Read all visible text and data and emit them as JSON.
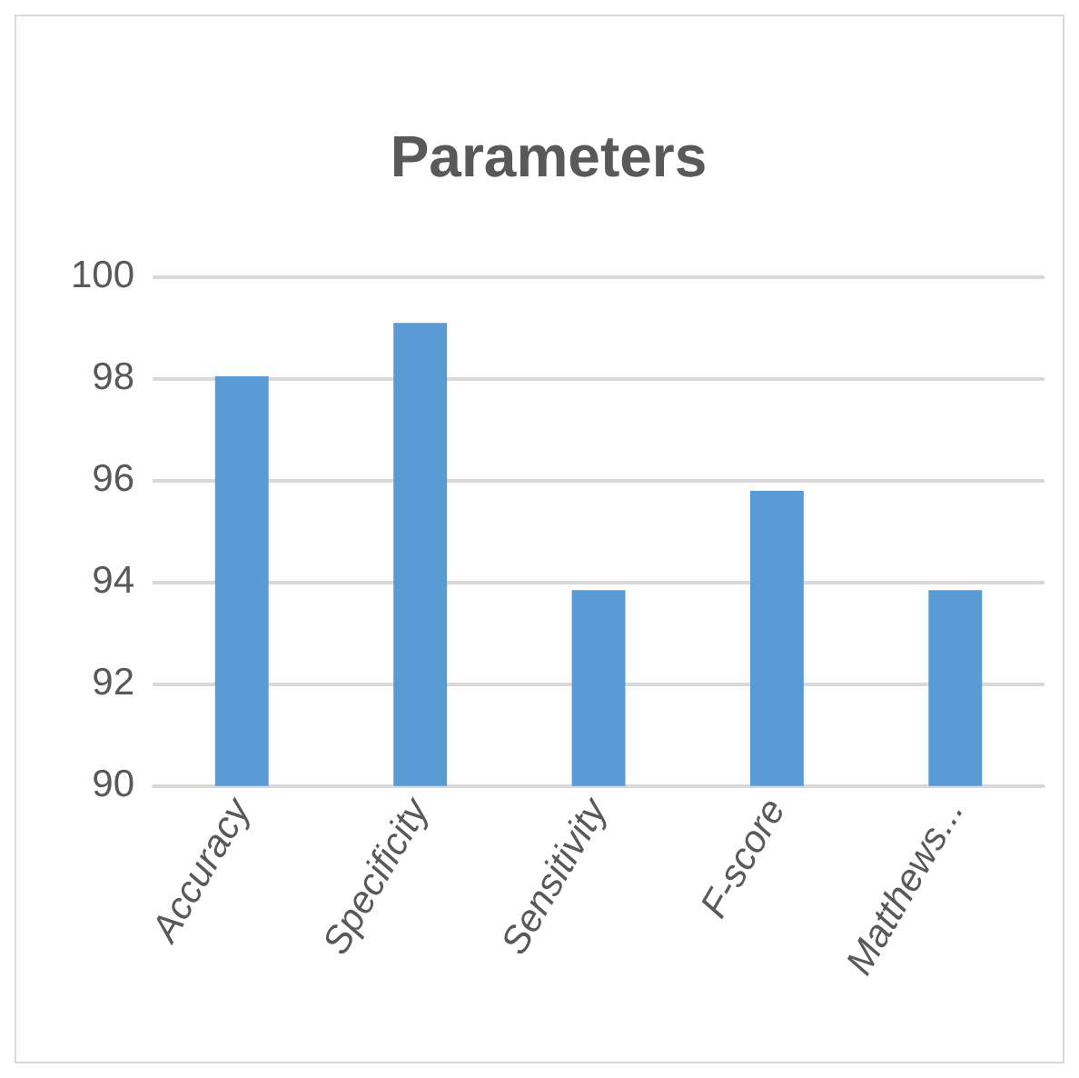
{
  "chart_data": {
    "type": "bar",
    "title": "Parameters",
    "categories": [
      "Accuracy",
      "Specificity",
      "Sensitivity",
      "F-score",
      "Matthews..."
    ],
    "values": [
      98.05,
      99.1,
      93.85,
      95.8,
      93.85
    ],
    "color": "#5b9bd5",
    "ylim": [
      90,
      100
    ],
    "yticks": [
      90,
      92,
      94,
      96,
      98,
      100
    ],
    "grid": "y",
    "legend": false
  }
}
